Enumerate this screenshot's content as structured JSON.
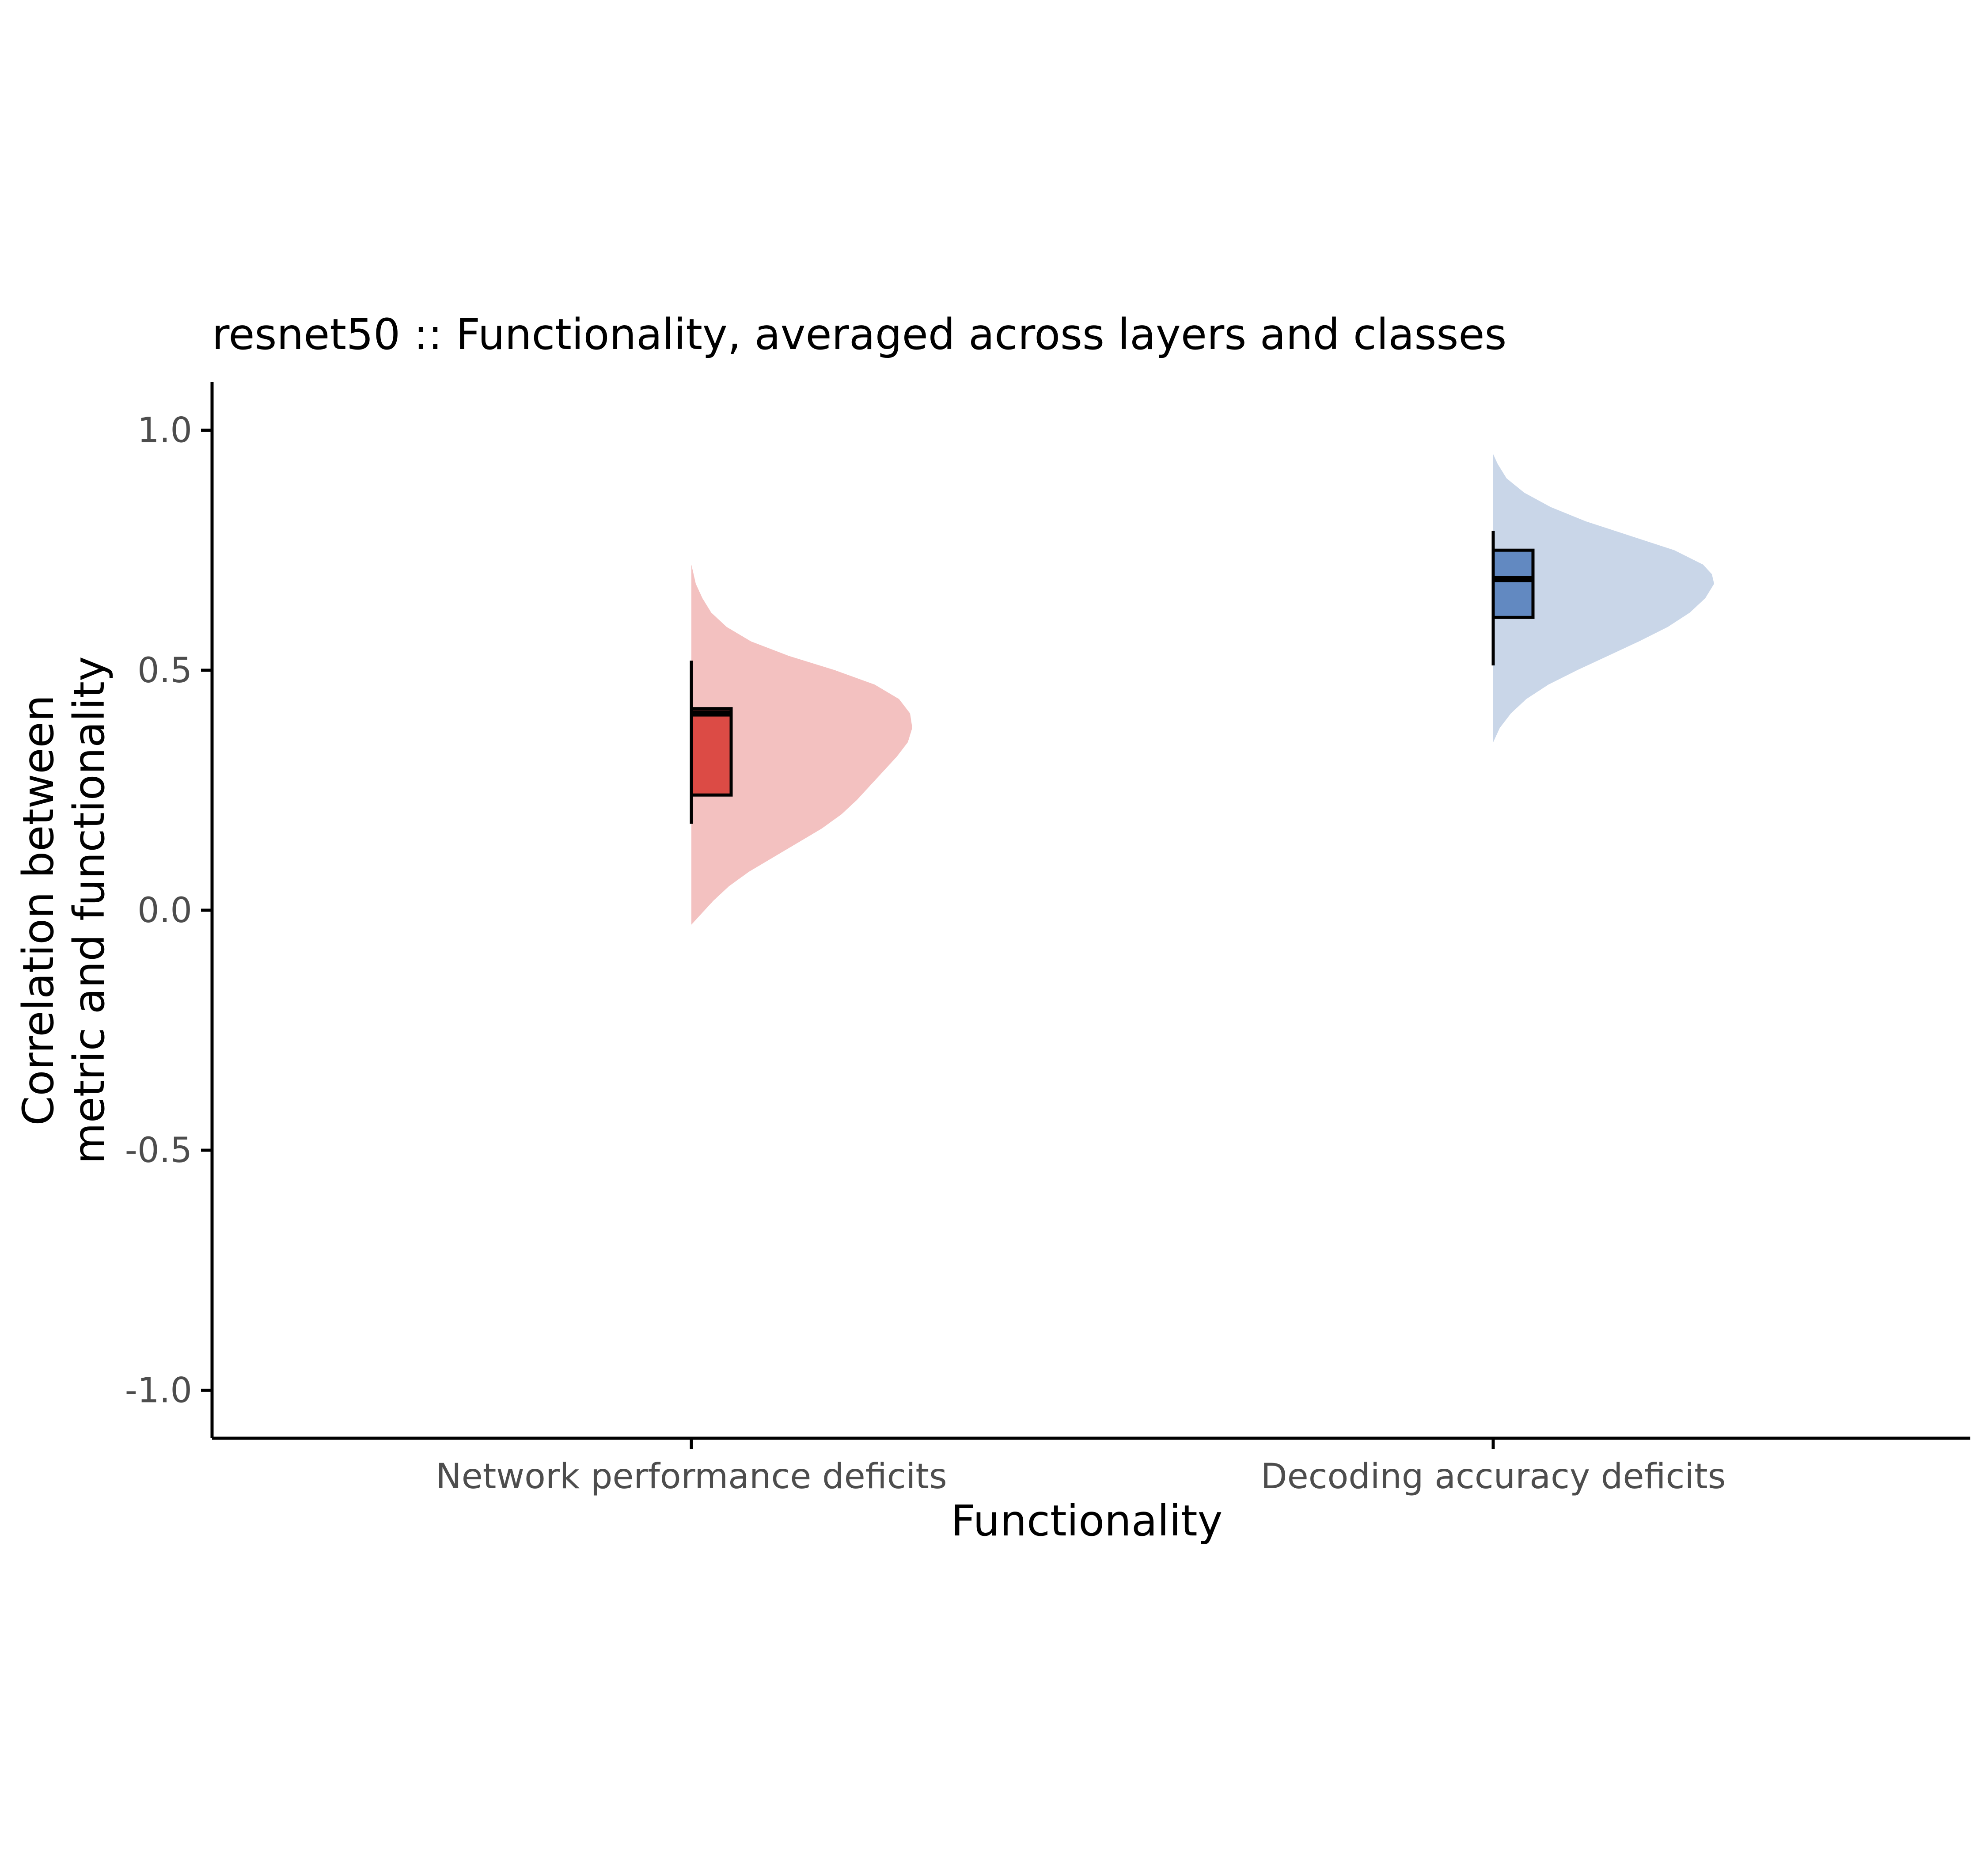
{
  "chart_data": {
    "type": "violin",
    "title": "resnet50 :: Functionality, averaged across layers and classes",
    "xlabel": "Functionality",
    "ylabel_lines": [
      "Correlation between",
      "metric and functionality"
    ],
    "categories": [
      "Network performance deficits",
      "Decoding accuracy deficits"
    ],
    "ylim": [
      -1.1,
      1.1
    ],
    "yticks": [
      -1.0,
      -0.5,
      0.0,
      0.5,
      1.0
    ],
    "ytick_labels": [
      "-1.0",
      "-0.5",
      "0.0",
      "0.5",
      "1.0"
    ],
    "grid": false,
    "legend": "none",
    "series": [
      {
        "category": "Network performance deficits",
        "fill_color": "#F3C1C0",
        "box_color": "#DC4B45",
        "box": {
          "whisker_low": 0.18,
          "q1": 0.24,
          "median": 0.41,
          "q3": 0.42,
          "whisker_high": 0.52
        },
        "density": {
          "y": [
            -0.03,
            -0.01,
            0.02,
            0.05,
            0.08,
            0.11,
            0.14,
            0.17,
            0.2,
            0.23,
            0.26,
            0.29,
            0.32,
            0.35,
            0.38,
            0.41,
            0.44,
            0.47,
            0.5,
            0.53,
            0.56,
            0.59,
            0.62,
            0.65,
            0.68,
            0.72
          ],
          "width": [
            0.0,
            0.04,
            0.1,
            0.17,
            0.26,
            0.37,
            0.48,
            0.59,
            0.68,
            0.75,
            0.81,
            0.87,
            0.93,
            0.98,
            1.0,
            0.99,
            0.94,
            0.83,
            0.65,
            0.44,
            0.27,
            0.16,
            0.09,
            0.05,
            0.02,
            0.0
          ]
        }
      },
      {
        "category": "Decoding accuracy deficits",
        "fill_color": "#C9D6E8",
        "box_color": "#6289C1",
        "box": {
          "whisker_low": 0.51,
          "q1": 0.61,
          "median": 0.69,
          "q3": 0.75,
          "whisker_high": 0.79
        },
        "density": {
          "y": [
            0.35,
            0.38,
            0.41,
            0.44,
            0.47,
            0.5,
            0.53,
            0.56,
            0.59,
            0.62,
            0.65,
            0.68,
            0.7,
            0.72,
            0.75,
            0.78,
            0.81,
            0.84,
            0.87,
            0.9,
            0.93,
            0.95
          ],
          "width": [
            0.0,
            0.03,
            0.08,
            0.15,
            0.25,
            0.38,
            0.52,
            0.66,
            0.79,
            0.89,
            0.96,
            1.0,
            0.99,
            0.95,
            0.82,
            0.62,
            0.42,
            0.26,
            0.14,
            0.06,
            0.02,
            0.0
          ]
        }
      }
    ]
  }
}
